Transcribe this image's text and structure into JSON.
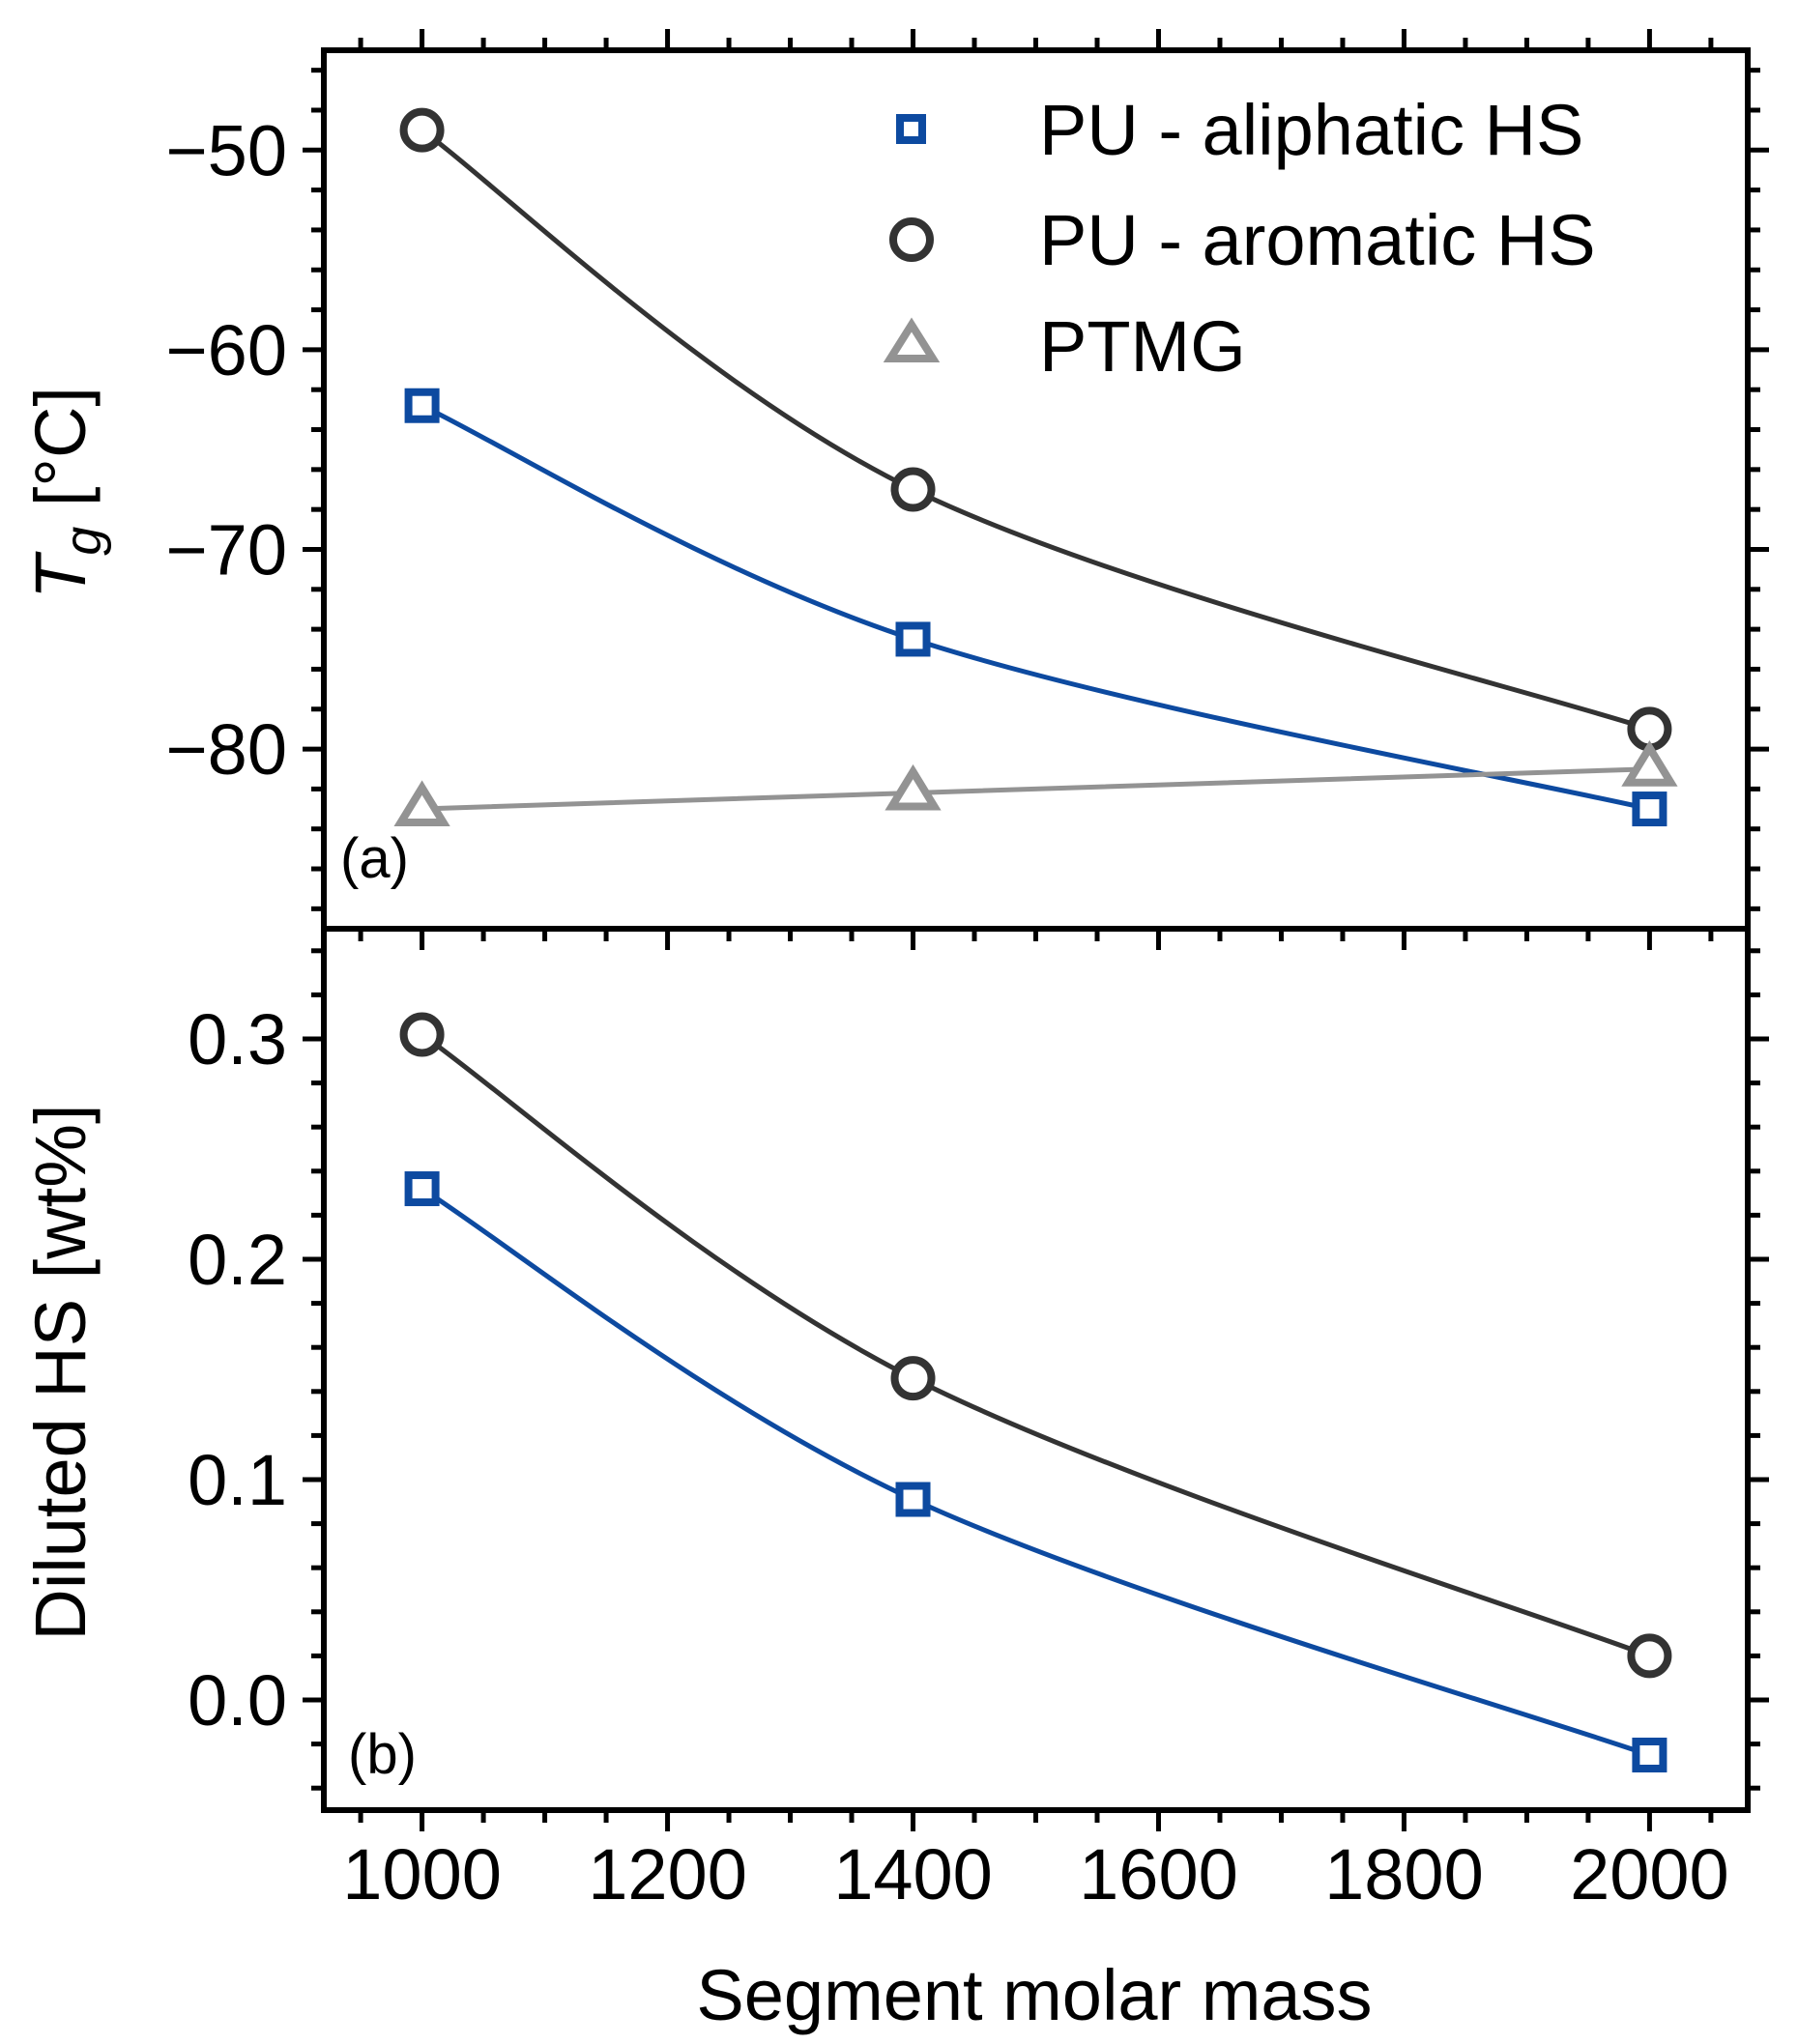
{
  "chart_data": [
    {
      "panel": "(a)",
      "type": "line",
      "xlabel": "Segment molar mass",
      "ylabel_main": "T",
      "ylabel_sub": "g",
      "ylabel_unit": " [°C]",
      "xlim": [
        920,
        2080
      ],
      "ylim": [
        -89,
        -45
      ],
      "yticks": [
        -50,
        -60,
        -70,
        -80
      ],
      "ytick_labels": [
        "−50",
        "−60",
        "−70",
        "−80"
      ],
      "x": [
        1000,
        1400,
        2000
      ],
      "series": [
        {
          "name": "PU - aliphatic HS",
          "marker": "square",
          "color": "#0d4aa0",
          "values": [
            -62.8,
            -74.5,
            -83
          ]
        },
        {
          "name": "PU - aromatic HS",
          "marker": "circle",
          "color": "#333333",
          "values": [
            -49,
            -67,
            -79
          ]
        },
        {
          "name": "PTMG",
          "marker": "triangle",
          "color": "#939393",
          "values": [
            -83,
            -82.2,
            -81
          ]
        }
      ],
      "legend_position": "top-right"
    },
    {
      "panel": "(b)",
      "type": "line",
      "xlabel": "Segment molar mass",
      "ylabel": "Diluted HS [wt%]",
      "xlim": [
        920,
        2080
      ],
      "ylim": [
        -0.05,
        0.35
      ],
      "yticks": [
        0.0,
        0.1,
        0.2,
        0.3
      ],
      "ytick_labels": [
        "0.0",
        "0.1",
        "0.2",
        "0.3"
      ],
      "x": [
        1000,
        1400,
        2000
      ],
      "series": [
        {
          "name": "PU - aliphatic HS",
          "marker": "square",
          "color": "#0d4aa0",
          "values": [
            0.232,
            0.091,
            -0.025
          ]
        },
        {
          "name": "PU - aromatic HS",
          "marker": "circle",
          "color": "#333333",
          "values": [
            0.302,
            0.146,
            0.02
          ]
        }
      ]
    }
  ],
  "xticks": [
    1000,
    1200,
    1400,
    1600,
    1800,
    2000
  ],
  "xtick_labels": [
    "1000",
    "1200",
    "1400",
    "1600",
    "1800",
    "2000"
  ]
}
